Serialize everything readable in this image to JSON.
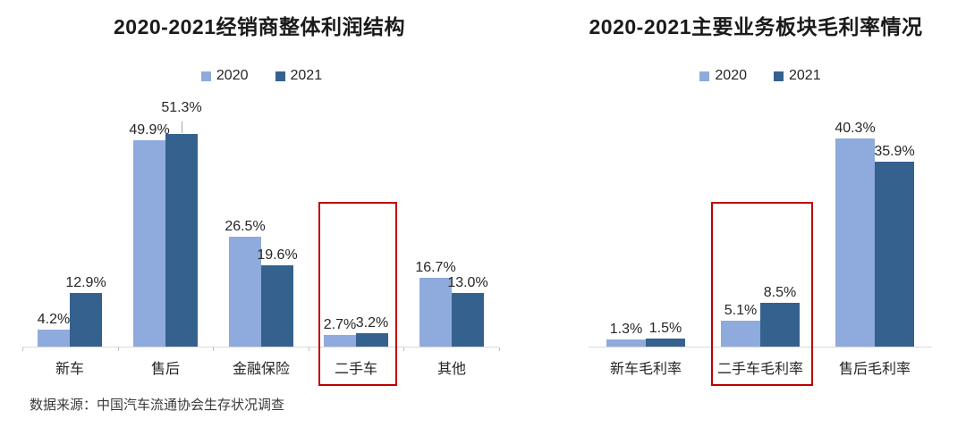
{
  "page": {
    "background": "#ffffff"
  },
  "colors": {
    "series_2020": "#8FAADC",
    "series_2021": "#35618F",
    "highlight_box": "#C00000",
    "axis_line": "#D9D9D9",
    "leader_line": "#A6A6A6",
    "title_text": "#1A1A1A",
    "label_text": "#262626"
  },
  "footer": {
    "source": "数据来源：中国汽车流通协会生存状况调查"
  },
  "chart_data": [
    {
      "type": "bar",
      "title": "2020-2021经销商整体利润结构",
      "categories": [
        "新车",
        "售后",
        "金融保险",
        "二手车",
        "其他"
      ],
      "series": [
        {
          "name": "2020",
          "color": "#8FAADC",
          "values": [
            4.2,
            49.9,
            26.5,
            2.7,
            16.7
          ]
        },
        {
          "name": "2021",
          "color": "#35618F",
          "values": [
            12.9,
            51.3,
            19.6,
            3.2,
            13.0
          ]
        }
      ],
      "value_labels": [
        "4.2%",
        "49.9%",
        "26.5%",
        "2.7%",
        "16.7%",
        "12.9%",
        "51.3%",
        "19.6%",
        "3.2%",
        "13.0%"
      ],
      "value_suffix": "%",
      "ylim": [
        0,
        55
      ],
      "grid": false,
      "legend_position": "top",
      "highlight_category": "二手车",
      "leader_line_label": {
        "series": "2021",
        "category": "售后"
      }
    },
    {
      "type": "bar",
      "title": "2020-2021主要业务板块毛利率情况",
      "categories": [
        "新车毛利率",
        "二手车毛利率",
        "售后毛利率"
      ],
      "series": [
        {
          "name": "2020",
          "color": "#8FAADC",
          "values": [
            1.3,
            5.1,
            40.3
          ]
        },
        {
          "name": "2021",
          "color": "#35618F",
          "values": [
            1.5,
            8.5,
            35.9
          ]
        }
      ],
      "value_labels": [
        "1.3%",
        "5.1%",
        "40.3%",
        "1.5%",
        "8.5%",
        "35.9%"
      ],
      "value_suffix": "%",
      "ylim": [
        0,
        44
      ],
      "grid": false,
      "legend_position": "top",
      "highlight_category": "二手车毛利率"
    }
  ]
}
